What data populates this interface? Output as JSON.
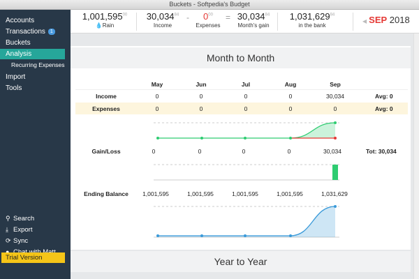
{
  "window": {
    "title": "Buckets - Softpedia's Budget"
  },
  "sidebar": {
    "items": [
      {
        "label": "Accounts"
      },
      {
        "label": "Transactions",
        "badge": "1"
      },
      {
        "label": "Buckets"
      },
      {
        "label": "Analysis"
      },
      {
        "label": "Recurring Expenses"
      },
      {
        "label": "Import"
      },
      {
        "label": "Tools"
      }
    ],
    "tools": [
      {
        "label": "Search",
        "icon": "search-icon"
      },
      {
        "label": "Export",
        "icon": "export-icon"
      },
      {
        "label": "Sync",
        "icon": "sync-icon"
      },
      {
        "label": "Chat with Matt",
        "icon": "chat-icon"
      }
    ],
    "trial": "Trial Version"
  },
  "topbar": {
    "rain": {
      "value": "1,001,595",
      "cents": "00",
      "label": "Rain"
    },
    "income": {
      "value": "30,034",
      "cents": "84",
      "label": "Income"
    },
    "minus": "-",
    "expenses": {
      "value": "0",
      "cents": "00",
      "label": "Expenses"
    },
    "equals": "=",
    "gain": {
      "value": "30,034",
      "cents": "84",
      "label": "Month's gain"
    },
    "bank": {
      "value": "1,031,629",
      "cents": "84",
      "label": "in the bank"
    },
    "month": "SEP",
    "year": "2018",
    "prev_arrow": "◀"
  },
  "month_to_month": {
    "title": "Month to Month",
    "months": [
      "May",
      "Jun",
      "Jul",
      "Aug",
      "Sep"
    ],
    "income": {
      "label": "Income",
      "values": [
        "0",
        "0",
        "0",
        "0",
        "30,034"
      ],
      "avg": "Avg: 0"
    },
    "expenses": {
      "label": "Expenses",
      "values": [
        "0",
        "0",
        "0",
        "0",
        "0"
      ],
      "avg": "Avg: 0"
    },
    "gainloss": {
      "label": "Gain/Loss",
      "values": [
        "0",
        "0",
        "0",
        "0",
        "30,034"
      ],
      "total": "Tot: 30,034"
    },
    "ending": {
      "label": "Ending Balance",
      "values": [
        "1,001,595",
        "1,001,595",
        "1,001,595",
        "1,001,595",
        "1,031,629"
      ]
    },
    "income_series": [
      0,
      0,
      0,
      0,
      30034
    ],
    "expense_series": [
      0,
      0,
      0,
      0,
      0
    ],
    "gain_series": [
      0,
      0,
      0,
      0,
      30034
    ],
    "balance_series": [
      1001595,
      1001595,
      1001595,
      1001595,
      1031629
    ],
    "colors": {
      "income": "#2ecc71",
      "expense": "#e53935",
      "balance": "#3a9ad9",
      "bar": "#2ecc71",
      "highlight": "#fdf5dd"
    }
  },
  "year_to_year": {
    "title": "Year to Year"
  }
}
